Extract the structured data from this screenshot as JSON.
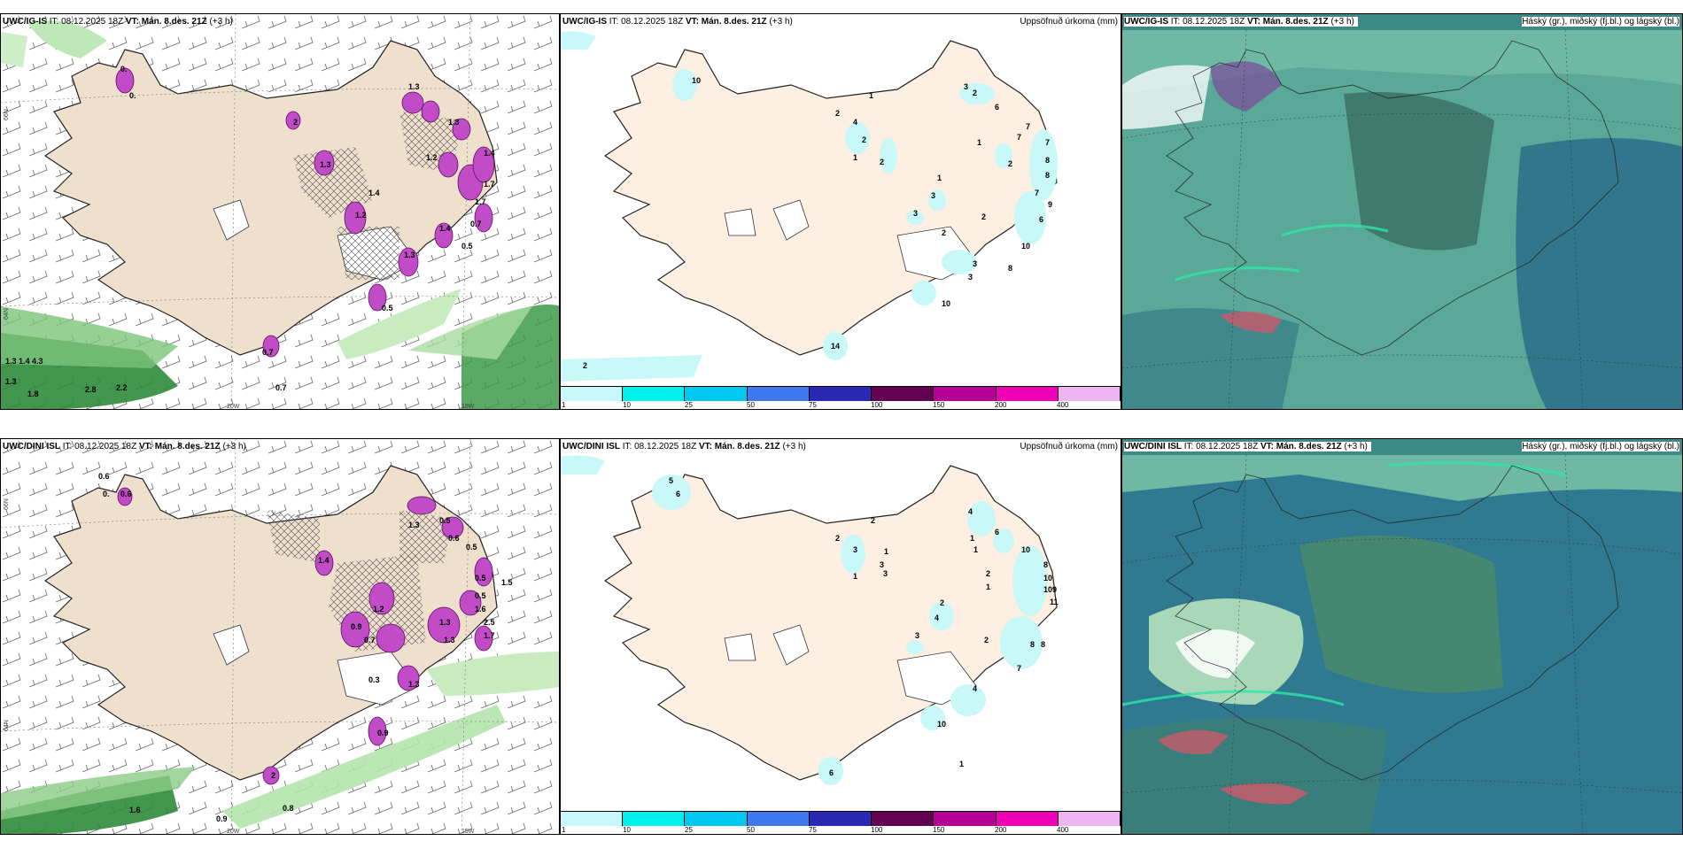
{
  "panels": [
    {
      "id": "ig-wind",
      "title_model": "UWC/IG-IS",
      "title_it": "IT: 08.12.2025 18Z",
      "title_vt": "VT: Mán. 8.des. 21Z",
      "title_step": "(+3 h)",
      "right_title": ""
    },
    {
      "id": "ig-precip",
      "title_model": "UWC/IG-IS",
      "title_it": "IT: 08.12.2025 18Z",
      "title_vt": "VT: Mán. 8.des. 21Z",
      "title_step": "(+3 h)",
      "right_title": "Uppsöfnuð úrkoma (mm)"
    },
    {
      "id": "ig-cloud",
      "title_model": "UWC/IG-IS",
      "title_it": "IT: 08.12.2025 18Z",
      "title_vt": "VT: Mán. 8.des. 21Z",
      "title_step": "(+3 h)",
      "right_title": "Háský (gr.), miðský (fj.bl.) og lágský (bl.)"
    },
    {
      "id": "dini-wind",
      "title_model": "UWC/DINI ISL",
      "title_it": "IT: 08.12.2025 18Z",
      "title_vt": "VT: Mán. 8.des. 21Z",
      "title_step": "(+3 h)",
      "right_title": ""
    },
    {
      "id": "dini-precip",
      "title_model": "UWC/DINI ISL",
      "title_it": "IT: 08.12.2025 18Z",
      "title_vt": "VT: Mán. 8.des. 21Z",
      "title_step": "(+3 h)",
      "right_title": "Uppsöfnuð úrkoma (mm)"
    },
    {
      "id": "dini-cloud",
      "title_model": "UWC/DINI ISL",
      "title_it": "IT: 08.12.2025 18Z",
      "title_vt": "VT: Mán. 8.des. 21Z",
      "title_step": "(+3 h)",
      "right_title": "Háský (gr.), miðský (fj.bl.) og lágský (bl.)"
    }
  ],
  "axis_labels": {
    "lat66": "66N",
    "lat64": "64N",
    "lon20": "20W",
    "lon15": "15W"
  },
  "legend": {
    "thresholds": [
      "1",
      "10",
      "25",
      "50",
      "75",
      "100",
      "150",
      "200",
      "400"
    ],
    "colors": [
      "#c8f8f8",
      "#00f0f0",
      "#00c8f0",
      "#3c78f0",
      "#2828b4",
      "#640050",
      "#b40096",
      "#f000b4",
      "#f0b4f0"
    ]
  },
  "ig_wind_labels": [
    "0.",
    "0.",
    "1.3",
    "1.3",
    "1.4",
    "1.2",
    "2",
    "1.3",
    "1.4",
    "1.2",
    "0.5",
    "1.7",
    "1.3",
    "1.4",
    "0.7",
    "1.7",
    "0.5",
    "0.7",
    "1.3 1.4 4.3",
    "1.3",
    "1.8",
    "2.8",
    "2.2",
    "0.7"
  ],
  "ig_precip_labels": [
    "10",
    "2",
    "4",
    "2",
    "1",
    "2",
    "1",
    "3",
    "2",
    "6",
    "1",
    "7",
    "7",
    "2",
    "7",
    "8",
    "8",
    "7",
    "9",
    "6",
    "1",
    "3",
    "3",
    "2",
    "2",
    "10",
    "3",
    "3",
    "8",
    "10",
    "14",
    "2"
  ],
  "dini_wind_labels": [
    "0.6",
    "0.",
    "0.6",
    "0.5",
    "0.6",
    "1.3",
    "0.5",
    "1.4",
    "1.2",
    "0.9",
    "0.7",
    "0.5",
    "1.5",
    "0.5",
    "1.6",
    "2.5",
    "1.3",
    "1.7",
    "0.3",
    "1.3",
    "2",
    "0.9",
    "1.3",
    "1.6",
    "0.9",
    "0.8"
  ],
  "dini_precip_labels": [
    "5",
    "6",
    "2",
    "2",
    "3",
    "1",
    "1",
    "3",
    "3",
    "4",
    "1",
    "6",
    "1",
    "10",
    "2",
    "8",
    "10",
    "10",
    "9",
    "11",
    "1",
    "4",
    "2",
    "3",
    "2",
    "8",
    "8",
    "7",
    "4",
    "10",
    "6",
    "1"
  ]
}
